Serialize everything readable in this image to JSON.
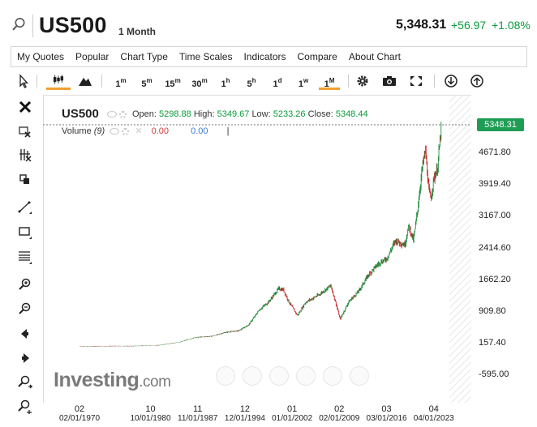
{
  "header": {
    "symbol": "US500",
    "period": "1 Month",
    "price": "5,348.31",
    "change": "+56.97",
    "change_pct": "+1.08%",
    "up_color": "#0a9a3a"
  },
  "menu": [
    "My Quotes",
    "Popular",
    "Chart Type",
    "Time Scales",
    "Indicators",
    "Compare",
    "About Chart"
  ],
  "toolbar": {
    "timeframes": [
      {
        "base": "1",
        "sup": "m"
      },
      {
        "base": "5",
        "sup": "m"
      },
      {
        "base": "15",
        "sup": "m"
      },
      {
        "base": "30",
        "sup": "m"
      },
      {
        "base": "1",
        "sup": "h"
      },
      {
        "base": "5",
        "sup": "h"
      },
      {
        "base": "1",
        "sup": "d"
      },
      {
        "base": "1",
        "sup": "w"
      },
      {
        "base": "1",
        "sup": "M"
      }
    ],
    "active_timeframe": "1M",
    "active_color": "#f0a030"
  },
  "legend": {
    "name": "US500",
    "open_label": "Open:",
    "open": "5298.88",
    "high_label": "High:",
    "high": "5349.67",
    "low_label": "Low:",
    "low": "5233.26",
    "close_label": "Close:",
    "close": "5348.44",
    "volume_label": "Volume",
    "volume_param": "(9)",
    "vol_a": "0.00",
    "vol_b": "0.00"
  },
  "y_ticks": [
    "4671.80",
    "3919.40",
    "3167.00",
    "2414.60",
    "1662.20",
    "909.80",
    "157.40",
    "-595.00"
  ],
  "last_price": "5348.31",
  "x_ticks": [
    {
      "top": "02",
      "bottom": "02/01/1970"
    },
    {
      "top": "10",
      "bottom": "10/01/1980"
    },
    {
      "top": "11",
      "bottom": "11/01/1987"
    },
    {
      "top": "12",
      "bottom": "12/01/1994"
    },
    {
      "top": "01",
      "bottom": "01/01/2002"
    },
    {
      "top": "02",
      "bottom": "02/01/2009"
    },
    {
      "top": "03",
      "bottom": "03/01/2016"
    },
    {
      "top": "04",
      "bottom": "04/01/2023"
    }
  ],
  "logo": {
    "main": "Investing",
    "suffix": ".com"
  },
  "chart_data": {
    "type": "line",
    "title": "US500",
    "ylim": [
      -595,
      5424
    ],
    "xlim": [
      1970.1,
      2024.5
    ],
    "x": [
      1970.1,
      1974,
      1978,
      1982,
      1985,
      1987.5,
      1990,
      1992,
      1994,
      1995.5,
      1997,
      1998.5,
      2000,
      2000.7,
      2001.5,
      2002.8,
      2004,
      2006,
      2007.8,
      2008.5,
      2009.2,
      2010.5,
      2012,
      2013.5,
      2015,
      2016.2,
      2017.5,
      2018.9,
      2019.5,
      2020.2,
      2020.8,
      2021.5,
      2022,
      2022.5,
      2022.8,
      2023.3,
      2023.8,
      2024.4
    ],
    "values": [
      85,
      95,
      95,
      115,
      185,
      300,
      330,
      420,
      460,
      600,
      940,
      1150,
      1460,
      1430,
      1150,
      820,
      1130,
      1310,
      1530,
      1150,
      730,
      1150,
      1400,
      1800,
      2060,
      2170,
      2600,
      2500,
      2950,
      2600,
      3300,
      4300,
      4750,
      3800,
      3600,
      4100,
      4300,
      5348
    ]
  }
}
